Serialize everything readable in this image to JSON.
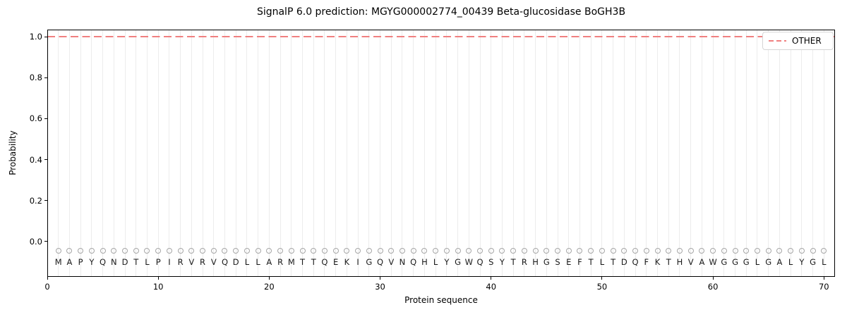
{
  "chart_data": {
    "type": "line",
    "title": "SignalP 6.0 prediction: MGYG000002774_00439 Beta-glucosidase BoGH3B",
    "xlabel": "Protein sequence",
    "ylabel": "Probability",
    "xlim": [
      0,
      71
    ],
    "ylim": [
      -0.172,
      1.035
    ],
    "xticks": [
      0,
      10,
      20,
      30,
      40,
      50,
      60,
      70
    ],
    "yticks": [
      "0.0",
      "0.2",
      "0.4",
      "0.6",
      "0.8",
      "1.0"
    ],
    "grid": {
      "vertical_line_per_residue": true,
      "color": "#ececec"
    },
    "sequence": "MAPYQNDTLPIRVRVQDLLARMTTQEKIGQVNQHLYGWQSYTRHGSEFTLTDQFKTHVAWGGGLGALYGL",
    "sequence_positions": [
      1,
      70
    ],
    "series": [
      {
        "name": "OTHER",
        "style": "dashed",
        "color": "#f08080",
        "constant_y": 1.0,
        "x_span": "full plot width"
      }
    ],
    "residue_markers": {
      "shape": "open-circle",
      "color": "#a6a6a6",
      "y": -0.045
    },
    "sequence_letter_y": -0.1,
    "legend": {
      "position": "upper right",
      "entries": [
        {
          "label": "OTHER",
          "line_style": "dashed",
          "color": "#f08080"
        }
      ]
    }
  }
}
